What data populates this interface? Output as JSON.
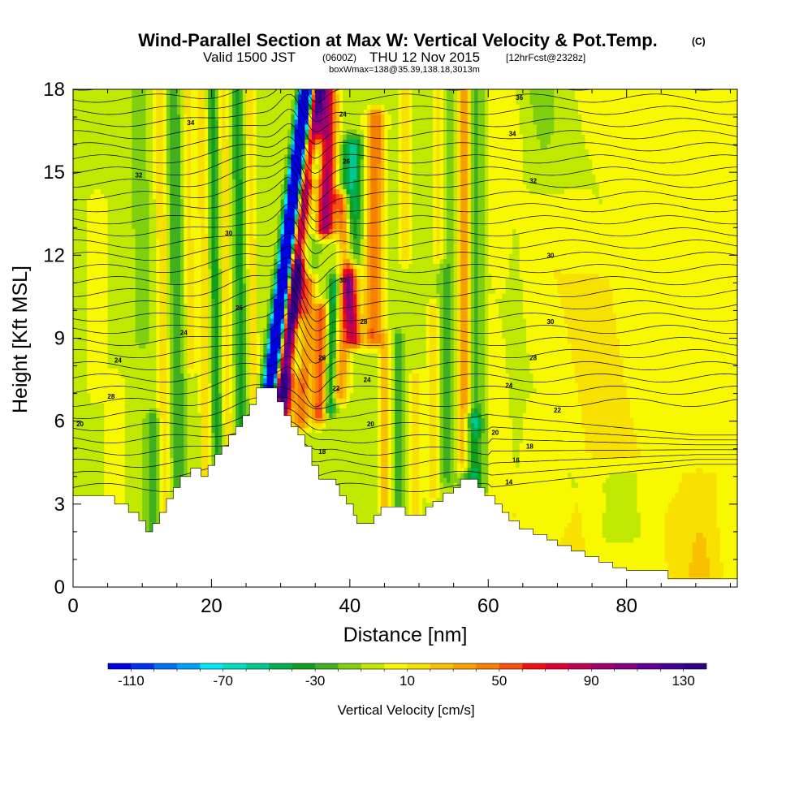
{
  "title": {
    "main": "Wind-Parallel Section at Max W: Vertical Velocity & Pot.Temp.",
    "copyright": "(C)",
    "line2_a": "Valid 1500 JST",
    "line2_b": "(0600Z)",
    "line2_c": "THU 12 Nov 2015",
    "line2_d": "[12hrFcst@2328z]",
    "line3": "boxWmax=138@35.39,138.18,3013m"
  },
  "chart_data": {
    "type": "heatmap",
    "xlabel": "Distance [nm]",
    "ylabel": "Height [Kft MSL]",
    "xlim": [
      0,
      96
    ],
    "ylim": [
      0,
      18
    ],
    "x_ticks": [
      0,
      20,
      40,
      60,
      80
    ],
    "y_ticks": [
      0,
      3,
      6,
      9,
      12,
      15,
      18
    ],
    "colorbar": {
      "title": "Vertical Velocity [cm/s]",
      "min": -120,
      "max": 140,
      "step": 10,
      "tick_labels": [
        "-110",
        "-70",
        "-30",
        "10",
        "50",
        "90",
        "130"
      ],
      "colors": [
        "#0000e0",
        "#0030f0",
        "#0070f0",
        "#00a0f8",
        "#00e8f8",
        "#00e0c0",
        "#00c890",
        "#00b050",
        "#10a020",
        "#40b020",
        "#80d010",
        "#c0e800",
        "#f8f800",
        "#f8e000",
        "#f8c000",
        "#f8a000",
        "#f88000",
        "#f85010",
        "#f01010",
        "#e00030",
        "#c00050",
        "#a00070",
        "#800080",
        "#600090",
        "#400090",
        "#300080"
      ]
    },
    "theta_labels": [
      {
        "x": 17,
        "y": 16.8,
        "text": "34"
      },
      {
        "x": 9.5,
        "y": 14.9,
        "text": "32"
      },
      {
        "x": 22.5,
        "y": 12.8,
        "text": "30"
      },
      {
        "x": 24,
        "y": 10.1,
        "text": "26"
      },
      {
        "x": 16,
        "y": 9.2,
        "text": "24"
      },
      {
        "x": 6.5,
        "y": 8.2,
        "text": "24"
      },
      {
        "x": 5.5,
        "y": 6.9,
        "text": "28"
      },
      {
        "x": 1,
        "y": 5.9,
        "text": "20"
      },
      {
        "x": 39,
        "y": 17.1,
        "text": "24"
      },
      {
        "x": 39.5,
        "y": 15.4,
        "text": "26"
      },
      {
        "x": 39,
        "y": 11.1,
        "text": "30"
      },
      {
        "x": 42,
        "y": 9.6,
        "text": "28"
      },
      {
        "x": 36,
        "y": 8.3,
        "text": "26"
      },
      {
        "x": 38,
        "y": 7.2,
        "text": "22"
      },
      {
        "x": 42.5,
        "y": 7.5,
        "text": "24"
      },
      {
        "x": 43,
        "y": 5.9,
        "text": "20"
      },
      {
        "x": 36,
        "y": 4.9,
        "text": "18"
      },
      {
        "x": 64.5,
        "y": 17.7,
        "text": "36"
      },
      {
        "x": 63.5,
        "y": 16.4,
        "text": "34"
      },
      {
        "x": 66.5,
        "y": 14.7,
        "text": "32"
      },
      {
        "x": 69,
        "y": 12.0,
        "text": "30"
      },
      {
        "x": 69,
        "y": 9.6,
        "text": "30"
      },
      {
        "x": 66.5,
        "y": 8.3,
        "text": "28"
      },
      {
        "x": 63,
        "y": 7.3,
        "text": "24"
      },
      {
        "x": 70,
        "y": 6.4,
        "text": "22"
      },
      {
        "x": 61,
        "y": 5.6,
        "text": "20"
      },
      {
        "x": 66,
        "y": 5.1,
        "text": "18"
      },
      {
        "x": 64,
        "y": 4.6,
        "text": "16"
      },
      {
        "x": 63,
        "y": 3.8,
        "text": "14"
      }
    ]
  }
}
